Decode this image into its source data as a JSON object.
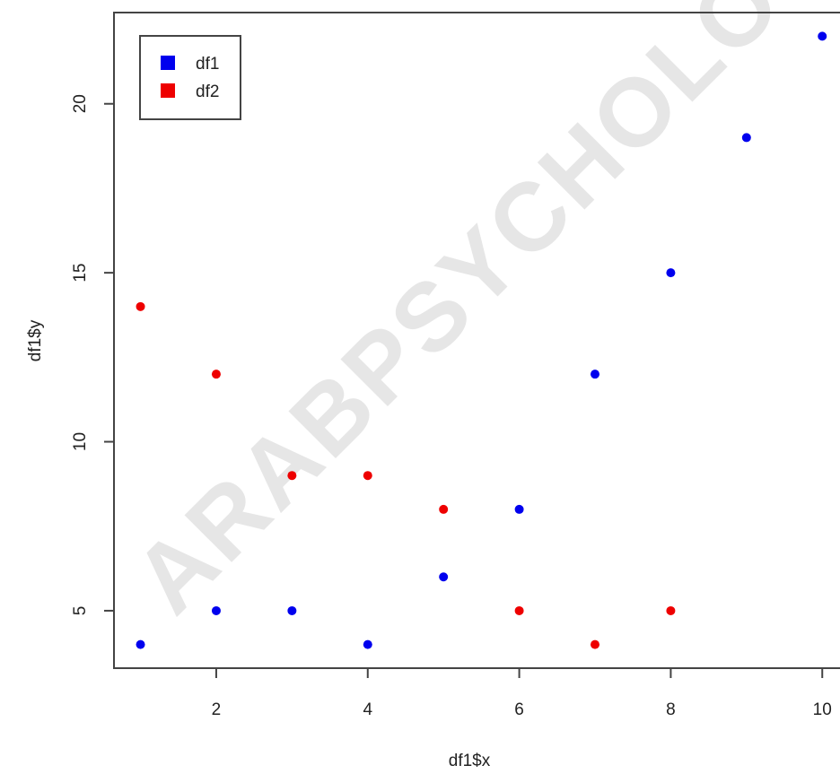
{
  "watermark": "ARABPSYCHOLO",
  "chart_data": {
    "type": "scatter",
    "title": "",
    "xlabel": "df1$x",
    "ylabel": "df1$y",
    "xlim": [
      0.65,
      10.4
    ],
    "ylim": [
      3.3,
      22.7
    ],
    "x_ticks": [
      2,
      4,
      6,
      8,
      10
    ],
    "y_ticks": [
      5,
      10,
      15,
      20
    ],
    "grid": false,
    "legend_position": "top-left",
    "series": [
      {
        "name": "df1",
        "color": "#0000ee",
        "x": [
          1,
          2,
          3,
          4,
          5,
          6,
          7,
          8,
          9,
          10
        ],
        "y": [
          4,
          5,
          5,
          4,
          6,
          8,
          12,
          15,
          19,
          22
        ]
      },
      {
        "name": "df2",
        "color": "#ee0000",
        "x": [
          1,
          2,
          3,
          4,
          5,
          6,
          7,
          8
        ],
        "y": [
          14,
          12,
          9,
          9,
          8,
          5,
          4,
          5
        ]
      }
    ]
  }
}
